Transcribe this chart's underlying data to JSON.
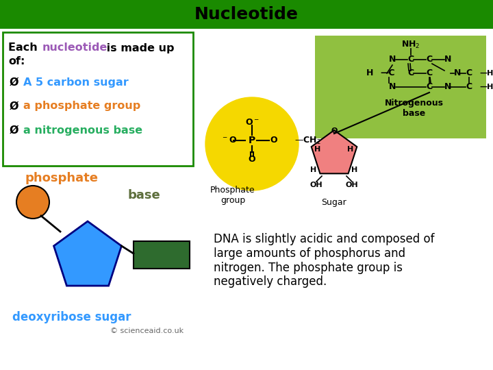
{
  "title": "Nucleotide",
  "title_bg": "#1a8a00",
  "title_color": "#000000",
  "title_fontsize": 18,
  "bg_color": "#ffffff",
  "bullet1": "A 5 carbon sugar",
  "bullet1_color": "#3399ff",
  "bullet2": "a phosphate group",
  "bullet2_color": "#e67e22",
  "bullet3": "a nitrogenous base",
  "bullet3_color": "#27ae60",
  "phosphate_label": "phosphate",
  "phosphate_label_color": "#e67e22",
  "base_label": "base",
  "base_label_color": "#5d6e3c",
  "deoxyribose_label": "deoxyribose sugar",
  "deoxyribose_label_color": "#3399ff",
  "circle_color": "#e67e22",
  "pentagon_color": "#3399ff",
  "pentagon_edge": "#000080",
  "rect_color": "#2e6b2e",
  "rect_edge": "#000000",
  "dna_text": "DNA is slightly acidic and composed of\nlarge amounts of phosphorus and\nnitrogen. The phosphate group is\nnegatively charged.",
  "dna_text_color": "#000000",
  "copyright": "© scienceaid.co.uk",
  "copyright_color": "#666666",
  "yellow_circle_color": "#f5d800",
  "pink_sugar_color": "#f08080",
  "green_base_bg": "#90c040",
  "nitro_base_label_color": "#000000"
}
